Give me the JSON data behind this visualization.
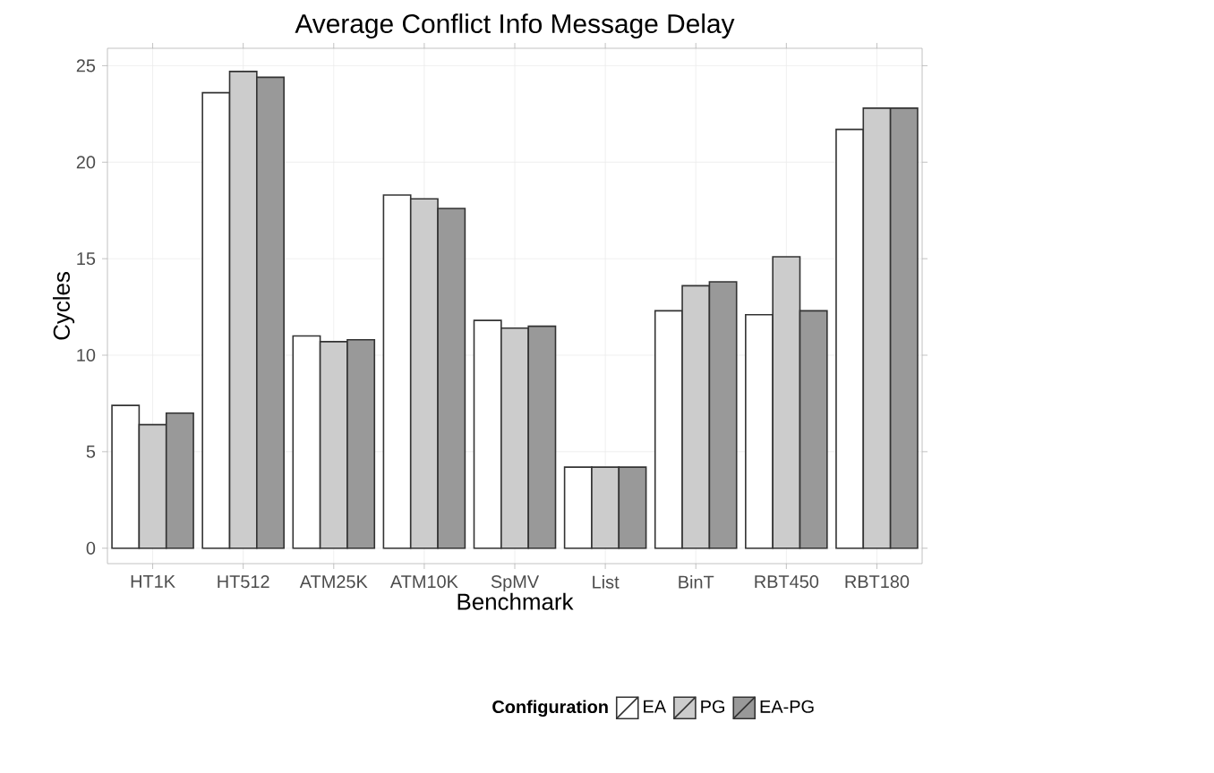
{
  "chart_data": {
    "type": "bar",
    "title": "Average Conflict Info Message Delay",
    "xlabel": "Benchmark",
    "ylabel": "Cycles",
    "categories": [
      "HT1K",
      "HT512",
      "ATM25K",
      "ATM10K",
      "SpMV",
      "List",
      "BinT",
      "RBT450",
      "RBT180"
    ],
    "series": [
      {
        "name": "EA",
        "color": "#ffffff",
        "values": [
          7.4,
          23.6,
          11.0,
          18.3,
          11.8,
          4.2,
          12.3,
          12.1,
          21.7
        ]
      },
      {
        "name": "PG",
        "color": "#cccccc",
        "values": [
          6.4,
          24.7,
          10.7,
          18.1,
          11.4,
          4.2,
          13.6,
          15.1,
          22.8
        ]
      },
      {
        "name": "EA-PG",
        "color": "#999999",
        "values": [
          7.0,
          24.4,
          10.8,
          17.6,
          11.5,
          4.2,
          13.8,
          12.3,
          22.8
        ]
      }
    ],
    "ylim": [
      -0.8,
      25.9
    ],
    "yticks": [
      0,
      5,
      10,
      15,
      20,
      25
    ],
    "grid": true,
    "legend": "bottom",
    "legend_title": "Configuration"
  }
}
